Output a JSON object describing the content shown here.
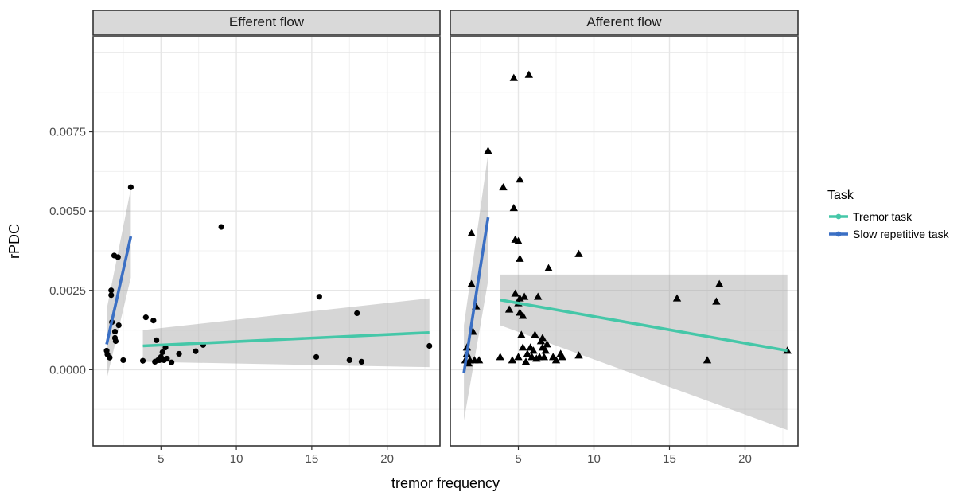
{
  "chart_data": {
    "type": "scatter",
    "title": "",
    "xlabel": "tremor frequency",
    "ylabel": "rPDC",
    "xlim": [
      0.5,
      23.5
    ],
    "ylim": [
      -0.0024,
      0.0105
    ],
    "x_ticks": [
      5,
      10,
      15,
      20
    ],
    "y_ticks": [
      0.0,
      0.0025,
      0.005,
      0.0075
    ],
    "y_tick_labels": [
      "0.0000",
      "0.0025",
      "0.0050",
      "0.0075"
    ],
    "grid": true,
    "legend": {
      "title": "Task",
      "placement": "right",
      "entries": [
        {
          "label": "Tremor task",
          "color": "#45c7a8"
        },
        {
          "label": "Slow repetitive task",
          "color": "#3a6fc4"
        }
      ]
    },
    "panels": [
      {
        "strip": "Efferent flow",
        "marker": "circle",
        "points": [
          [
            1.4,
            0.0006
          ],
          [
            1.45,
            0.00048
          ],
          [
            1.6,
            0.00038
          ],
          [
            1.7,
            0.0025
          ],
          [
            1.7,
            0.00235
          ],
          [
            1.75,
            0.0015
          ],
          [
            1.9,
            0.0036
          ],
          [
            1.95,
            0.0012
          ],
          [
            1.95,
            0.001
          ],
          [
            2.0,
            0.0009
          ],
          [
            2.15,
            0.00355
          ],
          [
            2.2,
            0.0014
          ],
          [
            2.5,
            0.0003
          ],
          [
            3.0,
            0.00575
          ],
          [
            3.8,
            0.00028
          ],
          [
            4.0,
            0.00165
          ],
          [
            4.5,
            0.00155
          ],
          [
            4.6,
            0.00025
          ],
          [
            4.7,
            0.00093
          ],
          [
            4.8,
            0.0003
          ],
          [
            4.9,
            0.0003
          ],
          [
            5.0,
            0.0004
          ],
          [
            5.1,
            0.00055
          ],
          [
            5.2,
            0.0003
          ],
          [
            5.3,
            0.0007
          ],
          [
            5.4,
            0.00035
          ],
          [
            5.7,
            0.00023
          ],
          [
            6.2,
            0.0005
          ],
          [
            7.3,
            0.00058
          ],
          [
            7.8,
            0.00078
          ],
          [
            9.0,
            0.0045
          ],
          [
            15.3,
            0.0004
          ],
          [
            15.5,
            0.0023
          ],
          [
            17.5,
            0.0003
          ],
          [
            18.0,
            0.00178
          ],
          [
            18.3,
            0.00025
          ],
          [
            22.8,
            0.00075
          ]
        ],
        "fits": [
          {
            "series": "Tremor task",
            "x": [
              3.8,
              22.8
            ],
            "y": [
              0.00075,
              0.00117
            ],
            "band_lower": [
              0.00025,
              8e-05
            ],
            "band_upper": [
              0.00125,
              0.00225
            ]
          },
          {
            "series": "Slow repetitive task",
            "x": [
              1.4,
              3.0
            ],
            "y": [
              0.0008,
              0.0042
            ],
            "band_lower": [
              -0.0003,
              0.0029
            ],
            "band_upper": [
              0.0019,
              0.0057
            ]
          }
        ]
      },
      {
        "strip": "Afferent flow",
        "marker": "triangle",
        "points": [
          [
            1.5,
            0.0003
          ],
          [
            1.6,
            0.0005
          ],
          [
            1.6,
            0.0007
          ],
          [
            1.7,
            0.0002
          ],
          [
            1.8,
            0.0003
          ],
          [
            1.9,
            0.0027
          ],
          [
            1.9,
            0.0043
          ],
          [
            2.0,
            0.0012
          ],
          [
            2.1,
            0.0003
          ],
          [
            2.2,
            0.002
          ],
          [
            2.4,
            0.0003
          ],
          [
            3.0,
            0.0069
          ],
          [
            3.8,
            0.0004
          ],
          [
            4.0,
            0.00575
          ],
          [
            4.4,
            0.0019
          ],
          [
            4.6,
            0.0003
          ],
          [
            4.7,
            0.0051
          ],
          [
            4.7,
            0.0092
          ],
          [
            4.8,
            0.0024
          ],
          [
            4.8,
            0.0041
          ],
          [
            5.0,
            0.0004
          ],
          [
            5.0,
            0.00405
          ],
          [
            5.0,
            0.0021
          ],
          [
            5.1,
            0.00225
          ],
          [
            5.1,
            0.0035
          ],
          [
            5.1,
            0.006
          ],
          [
            5.1,
            0.0018
          ],
          [
            5.2,
            0.0011
          ],
          [
            5.3,
            0.0017
          ],
          [
            5.3,
            0.0007
          ],
          [
            5.4,
            0.0023
          ],
          [
            5.5,
            0.00025
          ],
          [
            5.6,
            0.0005
          ],
          [
            5.7,
            0.0093
          ],
          [
            5.8,
            0.0007
          ],
          [
            5.9,
            0.0004
          ],
          [
            6.0,
            0.0006
          ],
          [
            6.1,
            0.0011
          ],
          [
            6.2,
            0.00035
          ],
          [
            6.3,
            0.0023
          ],
          [
            6.4,
            0.0004
          ],
          [
            6.5,
            0.0009
          ],
          [
            6.6,
            0.0007
          ],
          [
            6.6,
            0.001
          ],
          [
            6.7,
            0.0004
          ],
          [
            6.8,
            0.0006
          ],
          [
            6.9,
            0.0008
          ],
          [
            7.0,
            0.0032
          ],
          [
            7.3,
            0.0004
          ],
          [
            7.5,
            0.0003
          ],
          [
            7.8,
            0.0005
          ],
          [
            7.9,
            0.0004
          ],
          [
            9.0,
            0.00365
          ],
          [
            9.0,
            0.00045
          ],
          [
            15.5,
            0.00225
          ],
          [
            17.5,
            0.0003
          ],
          [
            18.1,
            0.00215
          ],
          [
            18.3,
            0.0027
          ],
          [
            22.8,
            0.0006
          ]
        ],
        "fits": [
          {
            "series": "Tremor task",
            "x": [
              3.8,
              22.8
            ],
            "y": [
              0.0022,
              0.0006
            ],
            "band_lower": [
              0.0014,
              -0.0019
            ],
            "band_upper": [
              0.003,
              0.003
            ]
          },
          {
            "series": "Slow repetitive task",
            "x": [
              1.4,
              3.0
            ],
            "y": [
              -0.0001,
              0.0048
            ],
            "band_lower": [
              -0.0016,
              0.0028
            ],
            "band_upper": [
              0.0014,
              0.0068
            ]
          }
        ]
      }
    ]
  }
}
